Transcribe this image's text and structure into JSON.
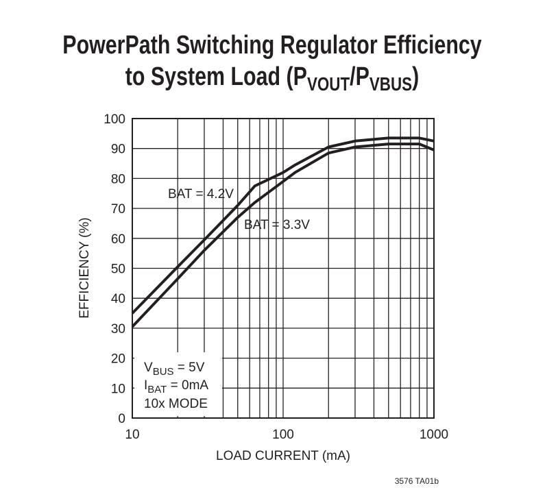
{
  "chart_data": {
    "type": "line",
    "title": [
      "PowerPath Switching Regulator Efficiency",
      "to System Load (P",
      "VOUT",
      "/P",
      "VBUS",
      ")"
    ],
    "xlabel": "LOAD CURRENT (mA)",
    "ylabel": "EFFICIENCY (%)",
    "xscale": "log",
    "x": [
      10,
      20,
      30,
      50,
      65,
      100,
      120,
      200,
      300,
      500,
      800,
      1000
    ],
    "series": [
      {
        "name": "BAT = 4.2V",
        "color": "#231f20",
        "values": [
          35,
          50.5,
          59.5,
          71,
          77.5,
          82,
          84.5,
          90.5,
          92.5,
          93.5,
          93.5,
          92.5
        ]
      },
      {
        "name": "BAT = 3.3V",
        "color": "#231f20",
        "values": [
          30.5,
          46.5,
          56,
          67,
          72,
          79,
          82,
          88.5,
          90.5,
          91.5,
          91.5,
          89.5
        ]
      }
    ],
    "xlim": [
      10,
      1000
    ],
    "ylim": [
      0,
      100
    ],
    "xticks": [
      10,
      100,
      1000
    ],
    "xminor": [
      20,
      30,
      40,
      50,
      60,
      70,
      80,
      90,
      200,
      300,
      400,
      500,
      600,
      700,
      800,
      900
    ],
    "yticks": [
      0,
      10,
      20,
      30,
      40,
      50,
      60,
      70,
      80,
      90,
      100
    ],
    "grid": true,
    "conditions": [
      [
        "V",
        "BUS",
        " = 5V"
      ],
      [
        "I",
        "BAT",
        " = 0mA"
      ],
      [
        "10x MODE"
      ]
    ],
    "note": "3576 TA01b"
  }
}
